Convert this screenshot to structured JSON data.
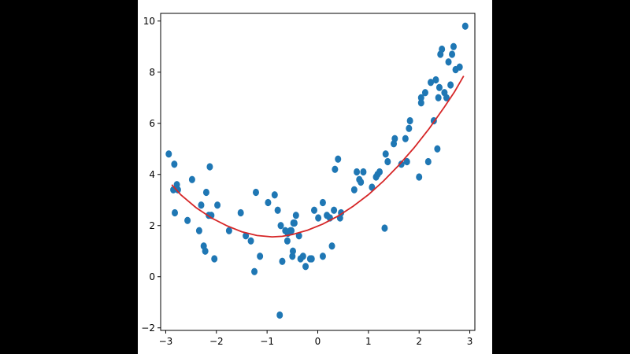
{
  "colors": {
    "background": "#000000",
    "figure": "#ffffff",
    "points": "#1f77b4",
    "curve": "#d62728",
    "axis": "#000000"
  },
  "chart_data": {
    "type": "scatter",
    "title": "",
    "xlabel": "",
    "ylabel": "",
    "xlim": [
      -3.1,
      3.1
    ],
    "ylim": [
      -2.1,
      10.3
    ],
    "grid": false,
    "legend": "none",
    "x_ticks": [
      -3,
      -2,
      -1,
      0,
      1,
      2,
      3
    ],
    "y_ticks": [
      -2,
      0,
      2,
      4,
      6,
      8,
      10
    ],
    "x_tick_labels": [
      "−3",
      "−2",
      "−1",
      "0",
      "1",
      "2",
      "3"
    ],
    "y_tick_labels": [
      "−2",
      "0",
      "2",
      "4",
      "6",
      "8",
      "10"
    ],
    "series": [
      {
        "kind": "scatter",
        "x": [
          -2.94,
          -2.85,
          -2.83,
          -2.82,
          -2.78,
          -2.76,
          -2.57,
          -2.48,
          -2.34,
          -2.3,
          -2.25,
          -2.22,
          -2.2,
          -2.15,
          -2.13,
          -2.1,
          -2.04,
          -1.98,
          -1.75,
          -1.52,
          -1.42,
          -1.32,
          -1.25,
          -1.22,
          -1.14,
          -0.98,
          -0.85,
          -0.79,
          -0.75,
          -0.73,
          -0.7,
          -0.64,
          -0.6,
          -0.59,
          -0.54,
          -0.52,
          -0.5,
          -0.49,
          -0.48,
          -0.46,
          -0.43,
          -0.37,
          -0.34,
          -0.29,
          -0.24,
          -0.15,
          -0.12,
          -0.07,
          0.01,
          0.1,
          0.1,
          0.18,
          0.24,
          0.28,
          0.32,
          0.34,
          0.4,
          0.44,
          0.46,
          0.72,
          0.77,
          0.82,
          0.85,
          0.9,
          1.07,
          1.15,
          1.18,
          1.22,
          1.32,
          1.34,
          1.38,
          1.5,
          1.52,
          1.65,
          1.73,
          1.76,
          1.8,
          1.82,
          2.0,
          2.04,
          2.04,
          2.12,
          2.18,
          2.23,
          2.29,
          2.33,
          2.36,
          2.38,
          2.4,
          2.42,
          2.45,
          2.5,
          2.54,
          2.58,
          2.62,
          2.65,
          2.68,
          2.72,
          2.8,
          2.91
        ],
        "y": [
          4.8,
          3.4,
          4.4,
          2.5,
          3.6,
          3.4,
          2.2,
          3.8,
          1.8,
          2.8,
          1.2,
          1.0,
          3.3,
          2.4,
          4.3,
          2.4,
          0.7,
          2.8,
          1.8,
          2.5,
          1.6,
          1.4,
          0.2,
          3.3,
          0.8,
          2.9,
          3.2,
          2.6,
          -1.5,
          2.0,
          0.6,
          1.8,
          1.4,
          1.7,
          1.8,
          1.8,
          0.8,
          1.0,
          2.1,
          2.1,
          2.4,
          1.6,
          0.7,
          0.8,
          0.4,
          0.7,
          0.7,
          2.6,
          2.3,
          0.8,
          2.9,
          2.4,
          2.3,
          1.2,
          2.6,
          4.2,
          4.6,
          2.3,
          2.5,
          3.4,
          4.1,
          3.8,
          3.7,
          4.1,
          3.5,
          3.9,
          4.0,
          4.1,
          1.9,
          4.8,
          4.5,
          5.2,
          5.4,
          4.4,
          5.4,
          4.5,
          5.8,
          6.1,
          3.9,
          6.8,
          7.0,
          7.2,
          4.5,
          7.6,
          6.1,
          7.7,
          5.0,
          7.0,
          7.4,
          8.7,
          8.9,
          7.2,
          7.0,
          8.4,
          7.5,
          8.7,
          9.0,
          8.1,
          8.2,
          9.8
        ]
      },
      {
        "kind": "line",
        "x": [
          -2.88,
          -2.7,
          -2.4,
          -2.1,
          -1.8,
          -1.5,
          -1.2,
          -0.9,
          -0.7,
          -0.5,
          -0.2,
          0.1,
          0.4,
          0.7,
          1.0,
          1.3,
          1.6,
          1.9,
          2.2,
          2.5,
          2.7,
          2.88
        ],
        "y": [
          3.6,
          3.2,
          2.7,
          2.3,
          2.0,
          1.76,
          1.61,
          1.56,
          1.58,
          1.65,
          1.82,
          2.06,
          2.37,
          2.76,
          3.21,
          3.75,
          4.36,
          5.04,
          5.8,
          6.64,
          7.24,
          7.85
        ]
      }
    ]
  }
}
